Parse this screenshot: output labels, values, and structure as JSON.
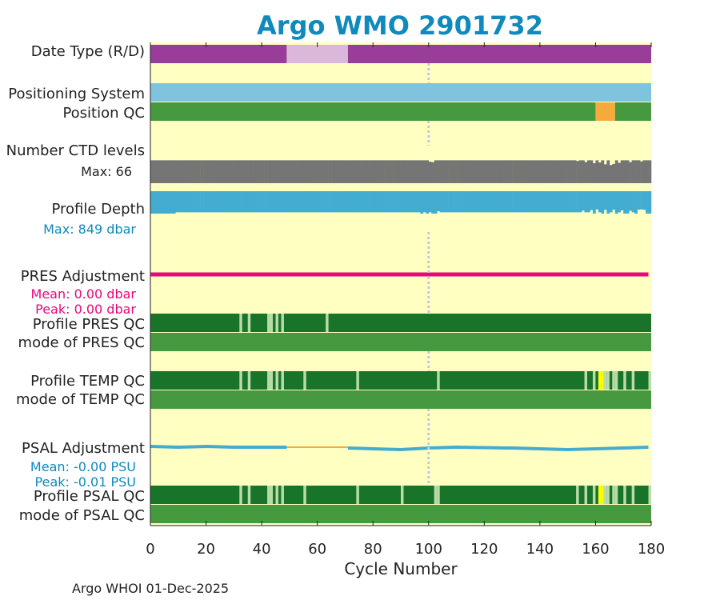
{
  "chart_data": {
    "type": "status-strip",
    "title": "Argo WMO 2901732",
    "xlabel": "Cycle Number",
    "xlim": [
      0,
      180
    ],
    "xticks": [
      0,
      20,
      40,
      60,
      80,
      100,
      120,
      140,
      160,
      180
    ],
    "xtick_labels": [
      "0",
      "20",
      "40",
      "60",
      "80",
      "100",
      "120",
      "140",
      "160",
      "180"
    ],
    "dotted_marker_cycle": 100,
    "footer": "Argo WHOI 01-Dec-2025",
    "colors": {
      "background": "#ffffc2",
      "title": "#1089bd",
      "date_type": "#993d9a",
      "date_type_light": "#dbb8db",
      "positioning": "#7ec4df",
      "qc_good": "#47993f",
      "qc_dark": "#187428",
      "qc_light": "#b8dba8",
      "qc_yellow": "#ffff00",
      "qc_orange": "#f5ab3c",
      "ctd": "#757575",
      "depth": "#43acd0",
      "pres_adj": "#e8087b",
      "psal_adj": "#43acd0",
      "psal_gap": "#f5ab3c",
      "marker": "#c8c8dc"
    },
    "rows": {
      "date_type": {
        "label": "Date Type (R/D)",
        "segments": [
          {
            "from": 0,
            "to": 49,
            "value": "R"
          },
          {
            "from": 49,
            "to": 71,
            "value": "D"
          },
          {
            "from": 71,
            "to": 180,
            "value": "R"
          }
        ]
      },
      "positioning_system": {
        "label": "Positioning System",
        "from": 0,
        "to": 180
      },
      "position_qc": {
        "label": "Position QC",
        "segments": [
          {
            "from": 0,
            "to": 160,
            "qc": 1
          },
          {
            "from": 160,
            "to": 167,
            "qc": 8
          },
          {
            "from": 167,
            "to": 180,
            "qc": 1
          }
        ]
      },
      "ctd_levels": {
        "label": "Number CTD levels",
        "max_label": "Max: 66",
        "max": 66,
        "typical": 63,
        "dips": [
          [
            100,
            59
          ],
          [
            101,
            58
          ],
          [
            153,
            61
          ],
          [
            156,
            58
          ],
          [
            159,
            55
          ],
          [
            161,
            57
          ],
          [
            163,
            52
          ],
          [
            165,
            50
          ],
          [
            166,
            53
          ],
          [
            168,
            56
          ],
          [
            172,
            58
          ],
          [
            176,
            60
          ]
        ]
      },
      "profile_depth": {
        "label": "Profile Depth",
        "max_label": "Max:  849 dbar",
        "max": 849,
        "typical": 800,
        "deep_cycles": [
          0,
          1,
          2,
          3,
          4,
          5,
          6,
          7,
          8,
          97,
          99,
          101,
          102,
          159,
          162,
          164,
          167,
          170,
          171,
          174,
          178,
          179
        ],
        "dips": [
          [
            103,
            760
          ],
          [
            155,
            740
          ],
          [
            158,
            715
          ],
          [
            160,
            690
          ],
          [
            163,
            705
          ],
          [
            166,
            700
          ],
          [
            169,
            725
          ],
          [
            172,
            745
          ],
          [
            175,
            700
          ],
          [
            176,
            690
          ],
          [
            177,
            705
          ]
        ]
      },
      "pres_adjustment": {
        "label": "PRES Adjustment",
        "mean_label": "Mean: 0.00 dbar",
        "peak_label": "Peak: 0.00 dbar",
        "from": 0,
        "to": 179
      },
      "profile_pres_qc": {
        "label": "Profile PRES QC",
        "light_cycles": [
          32,
          35,
          42,
          43,
          45,
          47,
          63
        ]
      },
      "mode_pres_qc": {
        "label": "mode of PRES QC"
      },
      "profile_temp_qc": {
        "label": "Profile TEMP QC",
        "light_cycles": [
          32,
          35,
          42,
          43,
          45,
          47,
          55,
          74,
          103,
          156,
          159,
          163,
          164,
          166,
          167,
          170,
          173,
          179
        ],
        "yellow_cycles": [
          161,
          162
        ]
      },
      "mode_temp_qc": {
        "label": "mode of TEMP QC"
      },
      "psal_adjustment": {
        "label": "PSAL Adjustment",
        "mean_label": "Mean: -0.00 PSU",
        "peak_label": "Peak: -0.01 PSU",
        "series": [
          [
            0,
            0.0
          ],
          [
            10,
            -0.001
          ],
          [
            20,
            0.0
          ],
          [
            30,
            -0.001
          ],
          [
            40,
            -0.001
          ],
          [
            49,
            -0.001
          ],
          [
            71,
            -0.002
          ],
          [
            80,
            -0.003
          ],
          [
            90,
            -0.004
          ],
          [
            100,
            -0.002
          ],
          [
            110,
            -0.001
          ],
          [
            130,
            -0.002
          ],
          [
            150,
            -0.004
          ],
          [
            160,
            -0.003
          ],
          [
            170,
            -0.002
          ],
          [
            179,
            -0.001
          ]
        ],
        "gap": [
          49,
          71
        ]
      },
      "profile_psal_qc": {
        "label": "Profile PSAL QC",
        "light_cycles": [
          32,
          35,
          42,
          43,
          45,
          47,
          55,
          74,
          90,
          102,
          103,
          153,
          156,
          159,
          163,
          164,
          166,
          167,
          170,
          173,
          179
        ],
        "yellow_cycles": [
          161,
          162
        ]
      },
      "mode_psal_qc": {
        "label": "mode of PSAL QC"
      }
    }
  }
}
